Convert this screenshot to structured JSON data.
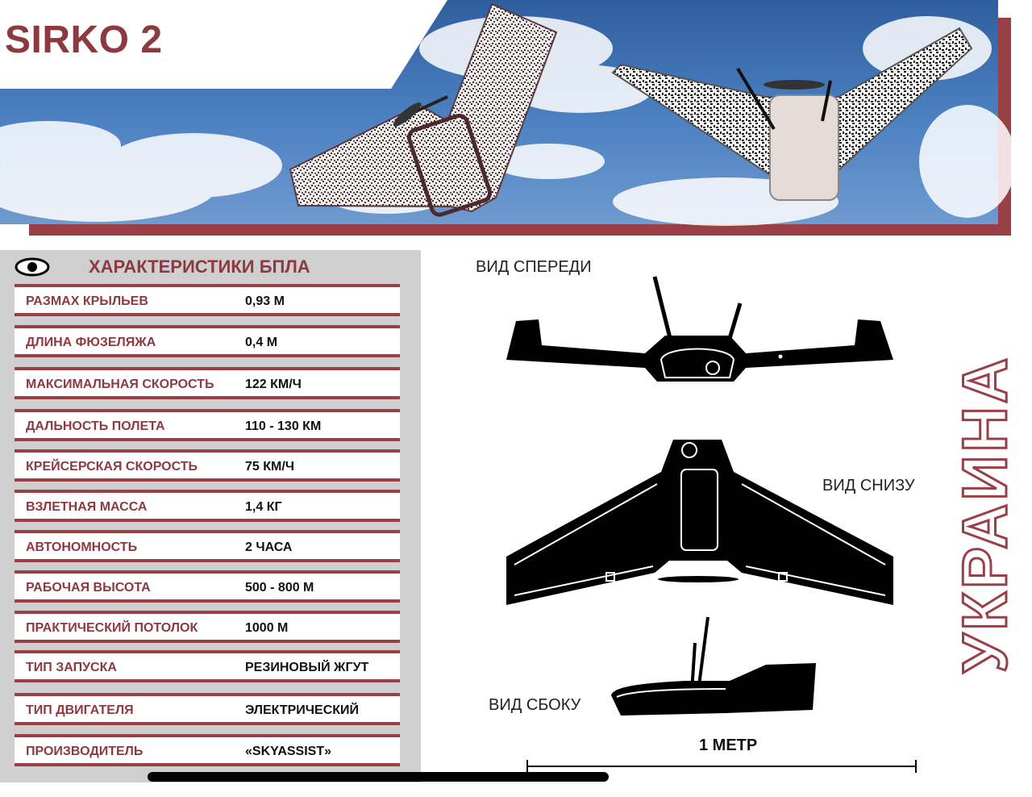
{
  "title": "SIRKO 2",
  "specs": {
    "heading": "ХАРАКТЕРИСТИКИ БПЛА",
    "rows": [
      {
        "label": "РАЗМАХ КРЫЛЬЕВ",
        "value": "0,93 М"
      },
      {
        "label": "ДЛИНА ФЮЗЕЛЯЖА",
        "value": "0,4 М"
      },
      {
        "label": "МАКСИМАЛЬНАЯ СКОРОСТЬ",
        "value": "122 КМ/Ч"
      },
      {
        "label": "ДАЛЬНОСТЬ ПОЛЕТА",
        "value": "110 - 130 КМ"
      },
      {
        "label": "КРЕЙСЕРСКАЯ СКОРОСТЬ",
        "value": "75 КМ/Ч"
      },
      {
        "label": "ВЗЛЕТНАЯ МАССА",
        "value": "1,4 КГ"
      },
      {
        "label": "АВТОНОМНОСТЬ",
        "value": "2 ЧАСА"
      },
      {
        "label": "РАБОЧАЯ ВЫСОТА",
        "value": "500 - 800 М"
      },
      {
        "label": "ПРАКТИЧЕСКИЙ ПОТОЛОК",
        "value": "1000 М"
      },
      {
        "label": "ТИП ЗАПУСКА",
        "value": "РЕЗИНОВЫЙ ЖГУТ"
      },
      {
        "label": "ТИП ДВИГАТЕЛЯ",
        "value": "ЭЛЕКТРИЧЕСКИЙ"
      },
      {
        "label": "ПРОИЗВОДИТЕЛЬ",
        "value": "«SKYASSIST»"
      }
    ]
  },
  "views": {
    "front": "ВИД СПЕРЕДИ",
    "bottom": "ВИД СНИЗУ",
    "side": "ВИД СБОКУ"
  },
  "scale_label": "1 МЕТР",
  "country": "УКРАИНА",
  "colors": {
    "accent": "#8c3a40",
    "sky": "#3c6fb0",
    "panel": "#cfcfcf"
  },
  "icons": {
    "eye": "eye-icon"
  }
}
